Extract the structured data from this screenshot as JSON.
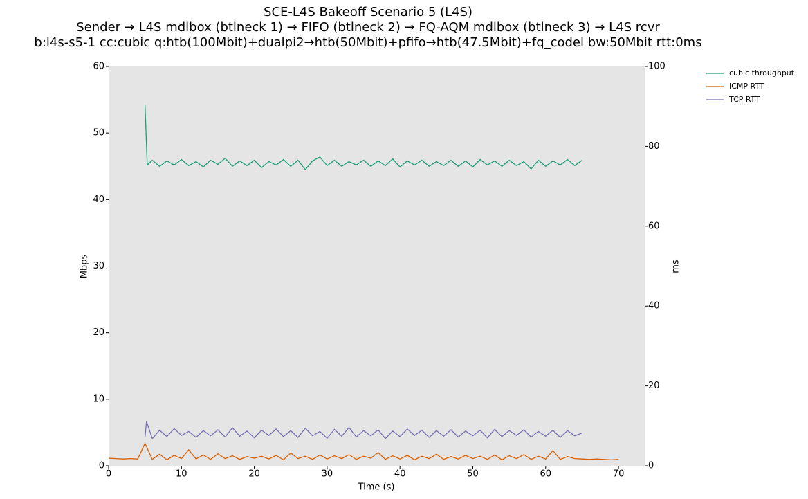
{
  "chart_data": {
    "type": "line",
    "title": [
      "SCE-L4S Bakeoff Scenario 5 (L4S)",
      "Sender → L4S mdlbox (btlneck 1) → FIFO (btlneck 2) → FQ-AQM mdlbox (btlneck 3) → L4S rcvr",
      "b:l4s-s5-1 cc:cubic q:htb(100Mbit)+dualpi2→htb(50Mbit)+pfifo→htb(47.5Mbit)+fq_codel bw:50Mbit rtt:0ms"
    ],
    "x_label": "Time (s)",
    "y_label": "Mbps",
    "y2_label": "ms",
    "xlim": [
      0,
      73.6
    ],
    "xticks": [
      0,
      10,
      20,
      30,
      40,
      50,
      60,
      70
    ],
    "ylim": [
      0,
      60
    ],
    "yticks": [
      0,
      10,
      20,
      30,
      40,
      50,
      60
    ],
    "y2lim": [
      0,
      100
    ],
    "y2ticks": [
      0,
      20,
      40,
      60,
      80,
      100
    ],
    "grid": false,
    "legend": "upper right outside",
    "series": [
      {
        "name": "cubic throughput",
        "color": "#1b9e77",
        "axis": "y",
        "x": [
          5,
          5.3,
          6,
          7,
          8,
          9,
          10,
          11,
          12,
          13,
          14,
          15,
          16,
          17,
          18,
          19,
          20,
          21,
          22,
          23,
          24,
          25,
          26,
          27,
          28,
          29,
          30,
          31,
          32,
          33,
          34,
          35,
          36,
          37,
          38,
          39,
          40,
          41,
          42,
          43,
          44,
          45,
          46,
          47,
          48,
          49,
          50,
          51,
          52,
          53,
          54,
          55,
          56,
          57,
          58,
          59,
          60,
          61,
          62,
          63,
          64,
          65
        ],
        "values": [
          54.2,
          45.2,
          45.9,
          45.0,
          45.8,
          45.2,
          46.0,
          45.1,
          45.7,
          44.9,
          45.9,
          45.3,
          46.2,
          45.0,
          45.8,
          45.1,
          45.9,
          44.8,
          45.7,
          45.2,
          46.0,
          45.0,
          45.9,
          44.5,
          45.8,
          46.4,
          45.1,
          45.9,
          45.0,
          45.7,
          45.2,
          45.9,
          45.0,
          45.8,
          45.1,
          46.1,
          44.9,
          45.8,
          45.2,
          45.9,
          45.0,
          45.7,
          45.1,
          45.9,
          45.0,
          45.8,
          44.9,
          46.0,
          45.2,
          45.8,
          45.0,
          45.9,
          45.1,
          45.7,
          44.6,
          45.9,
          45.0,
          45.8,
          45.2,
          46.0,
          45.1,
          45.9
        ]
      },
      {
        "name": "ICMP RTT",
        "color": "#d95f02",
        "axis": "y2",
        "x": [
          0,
          1,
          2,
          3,
          4,
          5,
          6,
          7,
          8,
          9,
          10,
          11,
          12,
          13,
          14,
          15,
          16,
          17,
          18,
          19,
          20,
          21,
          22,
          23,
          24,
          25,
          26,
          27,
          28,
          29,
          30,
          31,
          32,
          33,
          34,
          35,
          36,
          37,
          38,
          39,
          40,
          41,
          42,
          43,
          44,
          45,
          46,
          47,
          48,
          49,
          50,
          51,
          52,
          53,
          54,
          55,
          56,
          57,
          58,
          59,
          60,
          61,
          62,
          63,
          64,
          65,
          66,
          67,
          68,
          69,
          70
        ],
        "values": [
          1.9,
          1.8,
          1.7,
          1.8,
          1.7,
          5.6,
          1.6,
          2.9,
          1.5,
          2.6,
          1.8,
          4.0,
          1.7,
          2.7,
          1.6,
          3.0,
          1.8,
          2.5,
          1.6,
          2.3,
          1.9,
          2.4,
          1.7,
          2.6,
          1.5,
          3.2,
          1.8,
          2.4,
          1.6,
          2.7,
          1.7,
          2.5,
          1.8,
          2.8,
          1.6,
          2.4,
          1.9,
          3.3,
          1.6,
          2.5,
          1.7,
          2.6,
          1.5,
          2.4,
          1.8,
          2.9,
          1.6,
          2.3,
          1.7,
          2.6,
          1.8,
          2.4,
          1.6,
          2.7,
          1.5,
          2.5,
          1.8,
          2.8,
          1.6,
          2.4,
          1.7,
          3.8,
          1.6,
          2.3,
          1.8,
          1.7,
          1.6,
          1.7,
          1.6,
          1.5,
          1.6
        ]
      },
      {
        "name": "TCP RTT",
        "color": "#7570b3",
        "axis": "y2",
        "x": [
          5,
          5.2,
          6,
          7,
          8,
          9,
          10,
          11,
          12,
          13,
          14,
          15,
          16,
          17,
          18,
          19,
          20,
          21,
          22,
          23,
          24,
          25,
          26,
          27,
          28,
          29,
          30,
          31,
          32,
          33,
          34,
          35,
          36,
          37,
          38,
          39,
          40,
          41,
          42,
          43,
          44,
          45,
          46,
          47,
          48,
          49,
          50,
          51,
          52,
          53,
          54,
          55,
          56,
          57,
          58,
          59,
          60,
          61,
          62,
          63,
          64,
          65
        ],
        "values": [
          7.2,
          11.1,
          6.8,
          8.9,
          7.3,
          9.3,
          7.6,
          8.6,
          7.1,
          8.8,
          7.5,
          9.0,
          7.2,
          9.5,
          7.4,
          8.7,
          7.0,
          8.9,
          7.6,
          9.2,
          7.3,
          8.8,
          7.1,
          9.4,
          7.5,
          8.6,
          6.9,
          9.1,
          7.4,
          9.6,
          7.2,
          8.8,
          7.5,
          9.0,
          6.8,
          8.7,
          7.3,
          9.2,
          7.6,
          8.9,
          7.1,
          8.8,
          7.4,
          9.0,
          7.2,
          8.7,
          7.5,
          8.9,
          7.0,
          9.1,
          7.3,
          8.8,
          7.6,
          9.0,
          7.2,
          8.6,
          7.4,
          8.9,
          7.1,
          8.8,
          7.5,
          8.2
        ]
      }
    ]
  }
}
